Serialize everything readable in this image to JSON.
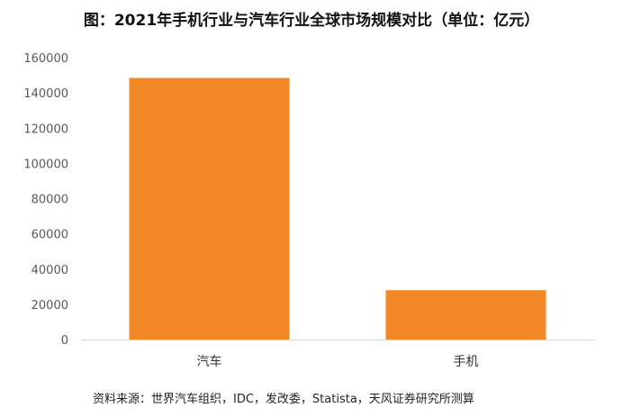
{
  "header": {
    "title": "图：2021年手机行业与汽车行业全球市场规模对比（单位：亿元）"
  },
  "footer": {
    "source": "资料来源：世界汽车组织，IDC，发改委，Statista，天风证券研究所测算"
  },
  "colors": {
    "bar": "#F28826",
    "axis": "#D9D9D9"
  },
  "chart_data": {
    "type": "bar",
    "title": "图：2021年手机行业与汽车行业全球市场规模对比（单位：亿元）",
    "categories": [
      "汽车",
      "手机"
    ],
    "values": [
      148500,
      28000
    ],
    "ylim": [
      0,
      160000
    ],
    "yticks": [
      0,
      20000,
      40000,
      60000,
      80000,
      100000,
      120000,
      140000,
      160000
    ],
    "xlabel": "",
    "ylabel": "",
    "grid": false,
    "legend": "none"
  }
}
